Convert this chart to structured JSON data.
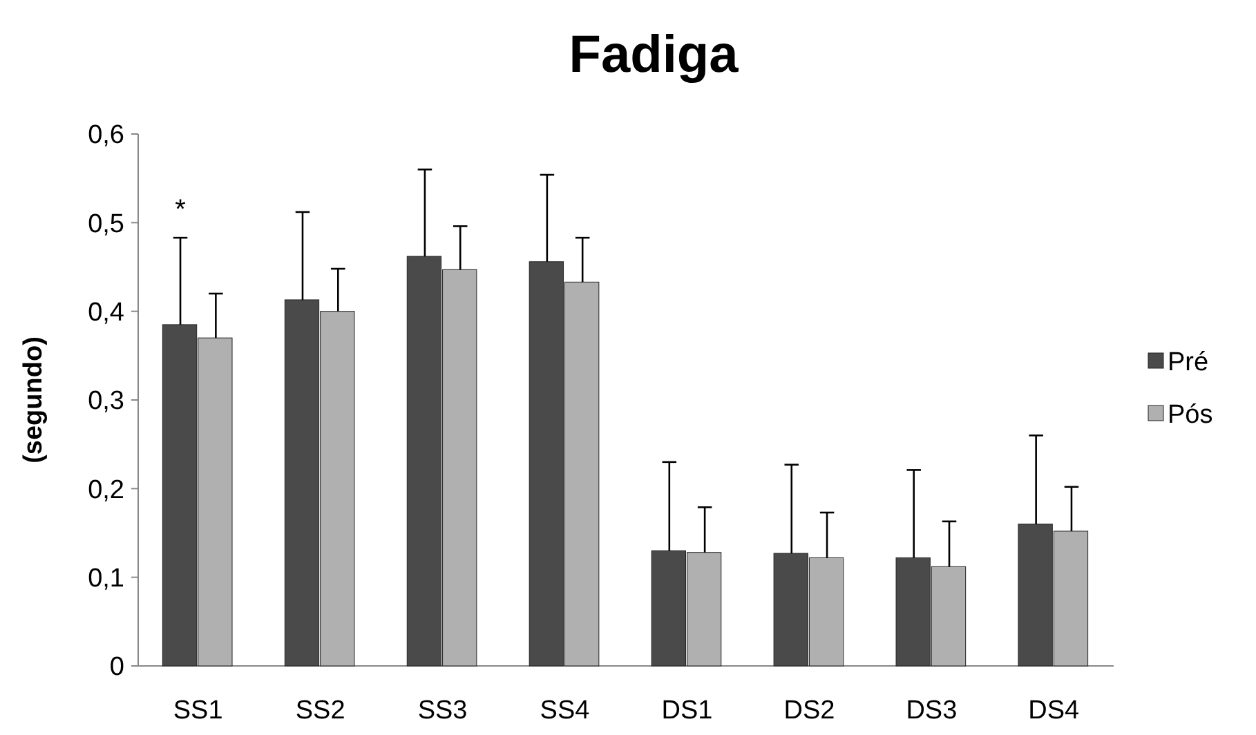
{
  "chart_data": {
    "type": "bar",
    "title": "Fadiga",
    "ylabel": "(segundo)",
    "categories": [
      "SS1",
      "SS2",
      "SS3",
      "SS4",
      "DS1",
      "DS2",
      "DS3",
      "DS4"
    ],
    "series": [
      {
        "name": "Pré",
        "color": "#4a4a4a",
        "values": [
          0.385,
          0.413,
          0.462,
          0.456,
          0.13,
          0.127,
          0.122,
          0.16
        ],
        "errors": [
          [
            0.385,
            0.483
          ],
          [
            0.413,
            0.512
          ],
          [
            0.462,
            0.56
          ],
          [
            0.456,
            0.554
          ],
          [
            0.13,
            0.23
          ],
          [
            0.127,
            0.227
          ],
          [
            0.122,
            0.221
          ],
          [
            0.16,
            0.26
          ]
        ]
      },
      {
        "name": "Pós",
        "color": "#b0b0b0",
        "values": [
          0.37,
          0.4,
          0.447,
          0.433,
          0.128,
          0.122,
          0.112,
          0.152
        ],
        "errors": [
          [
            0.37,
            0.42
          ],
          [
            0.4,
            0.448
          ],
          [
            0.447,
            0.496
          ],
          [
            0.433,
            0.483
          ],
          [
            0.128,
            0.179
          ],
          [
            0.122,
            0.173
          ],
          [
            0.112,
            0.163
          ],
          [
            0.152,
            0.202
          ]
        ]
      }
    ],
    "ylim": [
      0,
      0.6
    ],
    "yticks": [
      0,
      {
        "value": 0.1,
        "label": "0,1"
      },
      {
        "value": 0.2,
        "label": "0,2"
      },
      {
        "value": 0.3,
        "label": "0,3"
      },
      {
        "value": 0.4,
        "label": "0,4"
      },
      {
        "value": 0.5,
        "label": "0,5"
      },
      {
        "value": 0.6,
        "label": "0,6"
      }
    ],
    "annotations": [
      "*"
    ],
    "grid": false,
    "legend": "right"
  }
}
